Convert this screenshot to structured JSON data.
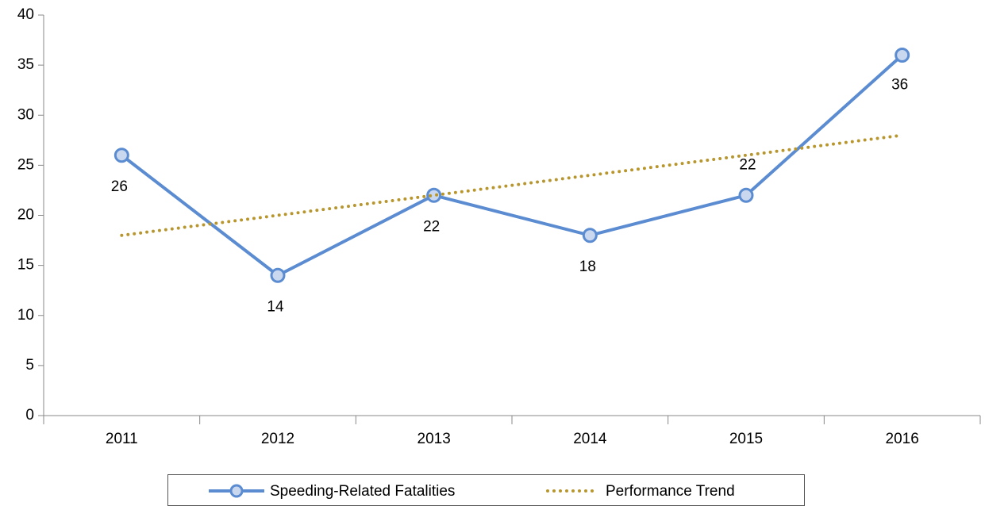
{
  "chart_data": {
    "type": "line",
    "categories": [
      "2011",
      "2012",
      "2013",
      "2014",
      "2015",
      "2016"
    ],
    "series": [
      {
        "name": "Speeding-Related Fatalities",
        "color": "#5b8cd1",
        "values": [
          26,
          14,
          22,
          18,
          22,
          36
        ]
      },
      {
        "name": "Performance Trend",
        "color": "#b8962e",
        "values": [
          18,
          20,
          22,
          24,
          26,
          28
        ]
      }
    ],
    "ylim": [
      0,
      40
    ],
    "yticks": [
      0,
      5,
      10,
      15,
      20,
      25,
      30,
      35,
      40
    ],
    "legend": "bottom"
  }
}
